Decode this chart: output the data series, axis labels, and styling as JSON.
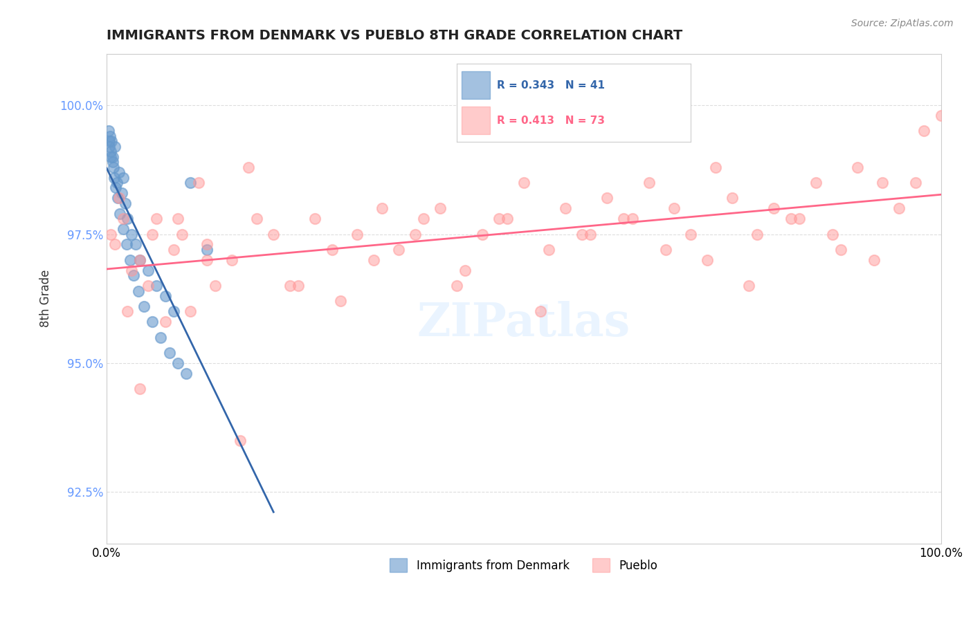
{
  "title": "IMMIGRANTS FROM DENMARK VS PUEBLO 8TH GRADE CORRELATION CHART",
  "source_text": "Source: ZipAtlas.com",
  "xlabel": "",
  "ylabel": "8th Grade",
  "xlim": [
    0.0,
    100.0
  ],
  "ylim": [
    91.5,
    101.0
  ],
  "yticks": [
    92.5,
    95.0,
    97.5,
    100.0
  ],
  "ytick_labels": [
    "92.5%",
    "95.0%",
    "97.5%",
    "100.0%"
  ],
  "xticks": [
    0.0,
    25.0,
    50.0,
    75.0,
    100.0
  ],
  "xtick_labels": [
    "0.0%",
    "",
    "",
    "",
    "100.0%"
  ],
  "legend_blue_label": "Immigrants from Denmark",
  "legend_pink_label": "Pueblo",
  "R_blue": 0.343,
  "N_blue": 41,
  "R_pink": 0.413,
  "N_pink": 73,
  "blue_color": "#6699CC",
  "pink_color": "#FF9999",
  "blue_line_color": "#3366AA",
  "pink_line_color": "#FF6688",
  "blue_x": [
    0.3,
    0.4,
    0.5,
    0.6,
    0.7,
    0.8,
    1.0,
    1.2,
    1.5,
    1.8,
    2.0,
    2.2,
    2.5,
    3.0,
    3.5,
    4.0,
    5.0,
    6.0,
    7.0,
    8.0,
    0.2,
    0.3,
    0.5,
    0.7,
    0.9,
    1.1,
    1.3,
    1.6,
    2.0,
    2.4,
    2.8,
    3.2,
    3.8,
    4.5,
    5.5,
    6.5,
    7.5,
    8.5,
    9.5,
    10.0,
    12.0
  ],
  "blue_y": [
    99.2,
    99.4,
    99.1,
    99.3,
    99.0,
    98.8,
    99.2,
    98.5,
    98.7,
    98.3,
    98.6,
    98.1,
    97.8,
    97.5,
    97.3,
    97.0,
    96.8,
    96.5,
    96.3,
    96.0,
    99.5,
    99.3,
    99.0,
    98.9,
    98.6,
    98.4,
    98.2,
    97.9,
    97.6,
    97.3,
    97.0,
    96.7,
    96.4,
    96.1,
    95.8,
    95.5,
    95.2,
    95.0,
    94.8,
    98.5,
    97.2
  ],
  "pink_x": [
    0.5,
    1.0,
    1.5,
    2.0,
    3.0,
    4.0,
    5.0,
    6.0,
    7.0,
    8.0,
    9.0,
    10.0,
    11.0,
    12.0,
    13.0,
    15.0,
    17.0,
    20.0,
    22.0,
    25.0,
    28.0,
    30.0,
    33.0,
    35.0,
    38.0,
    40.0,
    43.0,
    45.0,
    48.0,
    50.0,
    53.0,
    55.0,
    58.0,
    60.0,
    63.0,
    65.0,
    68.0,
    70.0,
    73.0,
    75.0,
    78.0,
    80.0,
    83.0,
    85.0,
    88.0,
    90.0,
    93.0,
    95.0,
    98.0,
    100.0,
    2.5,
    5.5,
    8.5,
    12.0,
    18.0,
    23.0,
    27.0,
    32.0,
    37.0,
    42.0,
    47.0,
    52.0,
    57.0,
    62.0,
    67.0,
    72.0,
    77.0,
    82.0,
    87.0,
    92.0,
    97.0,
    4.0,
    16.0
  ],
  "pink_y": [
    97.5,
    97.3,
    98.2,
    97.8,
    96.8,
    97.0,
    96.5,
    97.8,
    95.8,
    97.2,
    97.5,
    96.0,
    98.5,
    97.3,
    96.5,
    97.0,
    98.8,
    97.5,
    96.5,
    97.8,
    96.2,
    97.5,
    98.0,
    97.2,
    97.8,
    98.0,
    96.8,
    97.5,
    97.8,
    98.5,
    97.2,
    98.0,
    97.5,
    98.2,
    97.8,
    98.5,
    98.0,
    97.5,
    98.8,
    98.2,
    97.5,
    98.0,
    97.8,
    98.5,
    97.2,
    98.8,
    98.5,
    98.0,
    99.5,
    99.8,
    96.0,
    97.5,
    97.8,
    97.0,
    97.8,
    96.5,
    97.2,
    97.0,
    97.5,
    96.5,
    97.8,
    96.0,
    97.5,
    97.8,
    97.2,
    97.0,
    96.5,
    97.8,
    97.5,
    97.0,
    98.5,
    94.5,
    93.5
  ],
  "watermark": "ZIPatlas",
  "grid_color": "#DDDDDD",
  "background_color": "#FFFFFF"
}
